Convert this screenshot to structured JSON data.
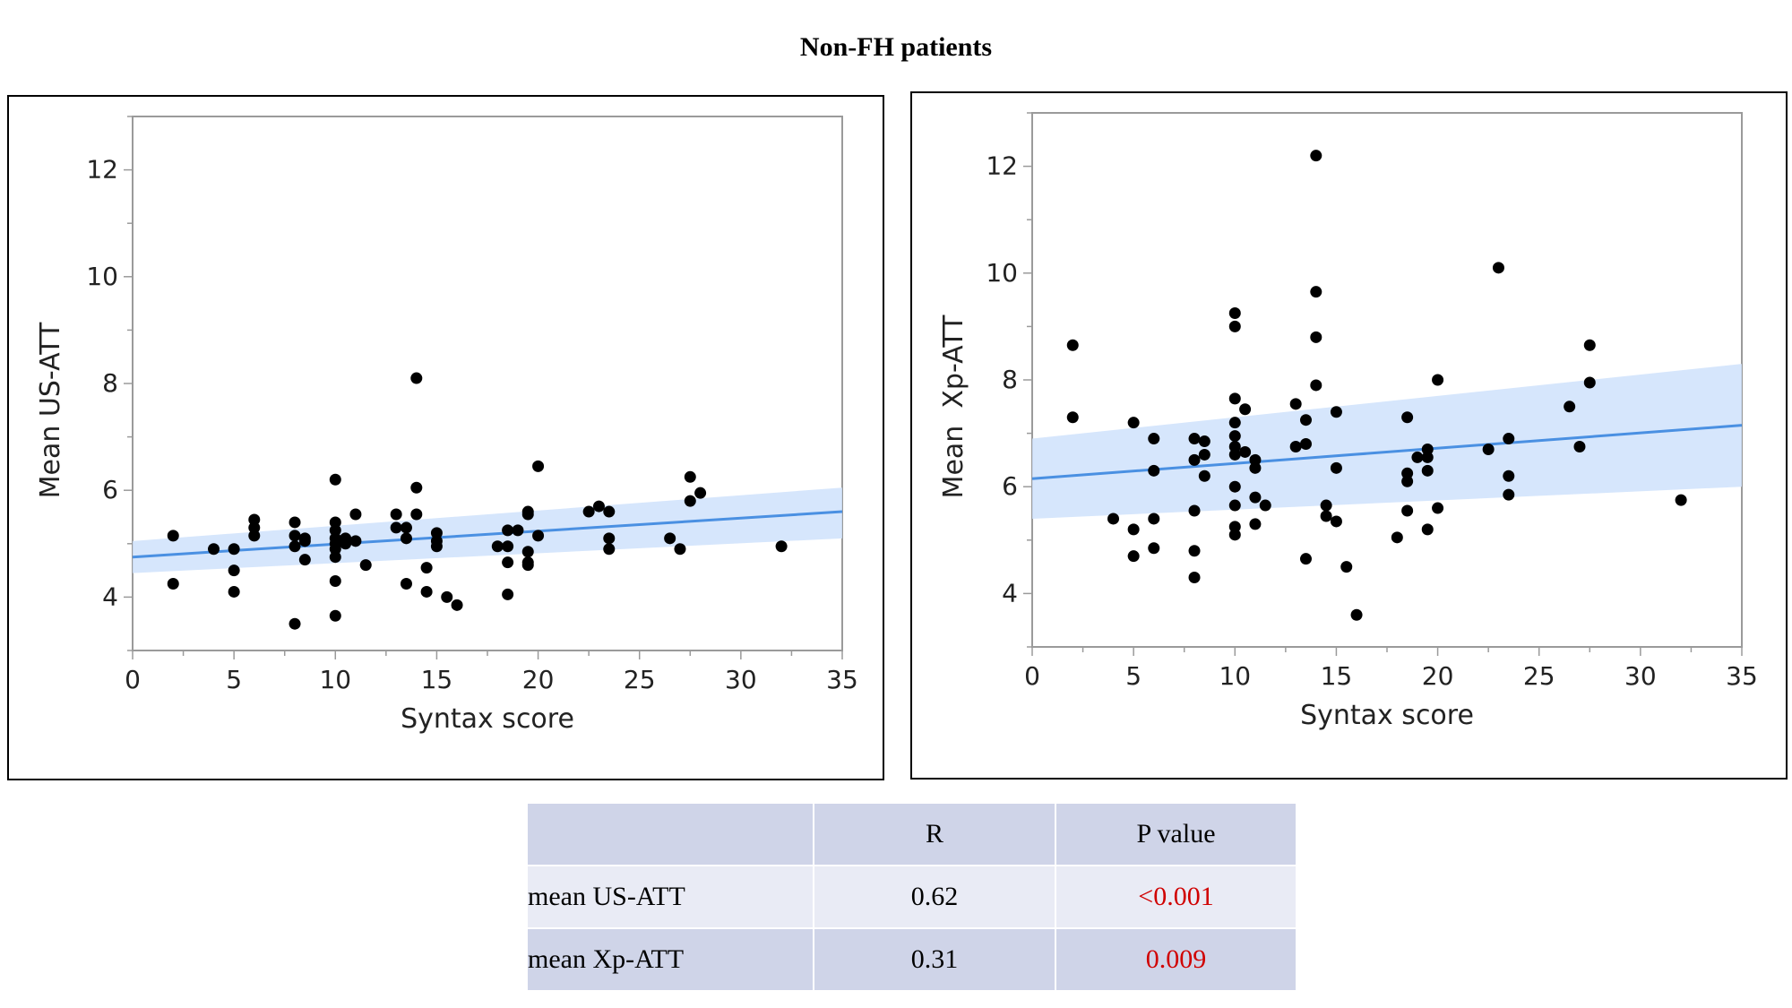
{
  "title": "Non-FH patients",
  "colors": {
    "point": "#000000",
    "fit_line": "#4a90e2",
    "band": "#cfe2fb",
    "pvalue": "#d00000"
  },
  "chart_data": [
    {
      "type": "scatter",
      "xlabel": "Syntax score",
      "ylabel": "Mean US-ATT",
      "xlim": [
        0,
        35
      ],
      "ylim": [
        3,
        13
      ],
      "xticks": [
        0,
        5,
        10,
        15,
        20,
        25,
        30,
        35
      ],
      "yticks": [
        4,
        6,
        8,
        10,
        12
      ],
      "fit": {
        "x": [
          0,
          35
        ],
        "y": [
          4.75,
          5.6
        ]
      },
      "ci_band": {
        "x": [
          0,
          35
        ],
        "lower": [
          4.45,
          5.1
        ],
        "upper": [
          5.05,
          6.05
        ]
      },
      "points": [
        [
          2,
          5.15
        ],
        [
          2,
          4.25
        ],
        [
          4,
          4.9
        ],
        [
          5,
          4.9
        ],
        [
          5,
          4.5
        ],
        [
          5,
          4.1
        ],
        [
          6,
          5.45
        ],
        [
          6,
          5.3
        ],
        [
          6,
          5.15
        ],
        [
          8,
          5.4
        ],
        [
          8,
          5.15
        ],
        [
          8,
          4.95
        ],
        [
          8,
          3.5
        ],
        [
          8.5,
          5.1
        ],
        [
          8.5,
          5.05
        ],
        [
          8.5,
          4.7
        ],
        [
          10,
          6.2
        ],
        [
          10,
          5.4
        ],
        [
          10,
          5.25
        ],
        [
          10,
          5.1
        ],
        [
          10,
          5.0
        ],
        [
          10,
          4.9
        ],
        [
          10,
          4.75
        ],
        [
          10,
          4.3
        ],
        [
          10,
          3.65
        ],
        [
          10.5,
          5.1
        ],
        [
          10.5,
          5.0
        ],
        [
          11,
          5.55
        ],
        [
          11,
          5.05
        ],
        [
          11.5,
          4.6
        ],
        [
          13,
          5.55
        ],
        [
          13,
          5.3
        ],
        [
          13.5,
          5.3
        ],
        [
          13.5,
          5.1
        ],
        [
          13.5,
          4.25
        ],
        [
          14,
          8.1
        ],
        [
          14,
          6.05
        ],
        [
          14,
          5.55
        ],
        [
          14.5,
          4.55
        ],
        [
          14.5,
          4.1
        ],
        [
          15,
          5.2
        ],
        [
          15,
          5.05
        ],
        [
          15,
          4.95
        ],
        [
          15.5,
          4.0
        ],
        [
          16,
          3.85
        ],
        [
          18,
          4.95
        ],
        [
          18.5,
          5.25
        ],
        [
          18.5,
          4.95
        ],
        [
          18.5,
          4.65
        ],
        [
          18.5,
          4.05
        ],
        [
          19,
          5.25
        ],
        [
          19.5,
          5.6
        ],
        [
          19.5,
          5.55
        ],
        [
          19.5,
          4.85
        ],
        [
          19.5,
          4.65
        ],
        [
          19.5,
          4.6
        ],
        [
          20,
          6.45
        ],
        [
          20,
          5.15
        ],
        [
          22.5,
          5.6
        ],
        [
          23,
          5.7
        ],
        [
          23.5,
          5.6
        ],
        [
          23.5,
          5.1
        ],
        [
          23.5,
          4.9
        ],
        [
          26.5,
          5.1
        ],
        [
          27,
          4.9
        ],
        [
          27.5,
          6.25
        ],
        [
          27.5,
          5.8
        ],
        [
          28,
          5.95
        ],
        [
          32,
          4.95
        ]
      ]
    },
    {
      "type": "scatter",
      "xlabel": "Syntax score",
      "ylabel": "Mean  Xp-ATT",
      "xlim": [
        0,
        35
      ],
      "ylim": [
        3,
        13
      ],
      "xticks": [
        0,
        5,
        10,
        15,
        20,
        25,
        30,
        35
      ],
      "yticks": [
        4,
        6,
        8,
        10,
        12
      ],
      "fit": {
        "x": [
          0,
          35
        ],
        "y": [
          6.15,
          7.15
        ]
      },
      "ci_band": {
        "x": [
          0,
          35
        ],
        "lower": [
          5.4,
          6.0
        ],
        "upper": [
          6.9,
          8.3
        ]
      },
      "points": [
        [
          2,
          8.65
        ],
        [
          2,
          7.3
        ],
        [
          4,
          5.4
        ],
        [
          5,
          7.2
        ],
        [
          5,
          5.2
        ],
        [
          5,
          4.7
        ],
        [
          6,
          6.9
        ],
        [
          6,
          6.3
        ],
        [
          6,
          5.4
        ],
        [
          6,
          4.85
        ],
        [
          8,
          6.9
        ],
        [
          8,
          6.5
        ],
        [
          8,
          5.55
        ],
        [
          8,
          4.8
        ],
        [
          8,
          4.3
        ],
        [
          8.5,
          6.85
        ],
        [
          8.5,
          6.6
        ],
        [
          8.5,
          6.2
        ],
        [
          10,
          9.25
        ],
        [
          10,
          9.0
        ],
        [
          10,
          7.65
        ],
        [
          10,
          7.2
        ],
        [
          10,
          6.95
        ],
        [
          10,
          6.75
        ],
        [
          10,
          6.6
        ],
        [
          10,
          6.0
        ],
        [
          10,
          5.65
        ],
        [
          10,
          5.25
        ],
        [
          10,
          5.1
        ],
        [
          10.5,
          7.45
        ],
        [
          10.5,
          6.65
        ],
        [
          11,
          6.5
        ],
        [
          11,
          6.35
        ],
        [
          11,
          5.8
        ],
        [
          11,
          5.3
        ],
        [
          11.5,
          5.65
        ],
        [
          13,
          7.55
        ],
        [
          13,
          6.75
        ],
        [
          13.5,
          7.25
        ],
        [
          13.5,
          6.8
        ],
        [
          13.5,
          4.65
        ],
        [
          14,
          12.2
        ],
        [
          14,
          9.65
        ],
        [
          14,
          8.8
        ],
        [
          14,
          7.9
        ],
        [
          14.5,
          5.65
        ],
        [
          14.5,
          5.45
        ],
        [
          15,
          7.4
        ],
        [
          15,
          6.35
        ],
        [
          15,
          5.35
        ],
        [
          15.5,
          4.5
        ],
        [
          16,
          3.6
        ],
        [
          18,
          5.05
        ],
        [
          18.5,
          7.3
        ],
        [
          18.5,
          6.25
        ],
        [
          18.5,
          6.1
        ],
        [
          18.5,
          5.55
        ],
        [
          19,
          6.55
        ],
        [
          19.5,
          6.7
        ],
        [
          19.5,
          6.55
        ],
        [
          19.5,
          6.3
        ],
        [
          19.5,
          5.2
        ],
        [
          20,
          8.0
        ],
        [
          20,
          5.6
        ],
        [
          22.5,
          6.7
        ],
        [
          23,
          10.1
        ],
        [
          23.5,
          6.9
        ],
        [
          23.5,
          6.2
        ],
        [
          23.5,
          5.85
        ],
        [
          26.5,
          7.5
        ],
        [
          27,
          6.75
        ],
        [
          27.5,
          8.65
        ],
        [
          27.5,
          7.95
        ],
        [
          32,
          5.75
        ]
      ]
    }
  ],
  "table": {
    "headers": [
      "",
      "R",
      "P value"
    ],
    "rows": [
      {
        "label": "mean US-ATT",
        "r": "0.62",
        "p": "<0.001"
      },
      {
        "label": "mean Xp-ATT",
        "r": "0.31",
        "p": "0.009"
      }
    ]
  }
}
